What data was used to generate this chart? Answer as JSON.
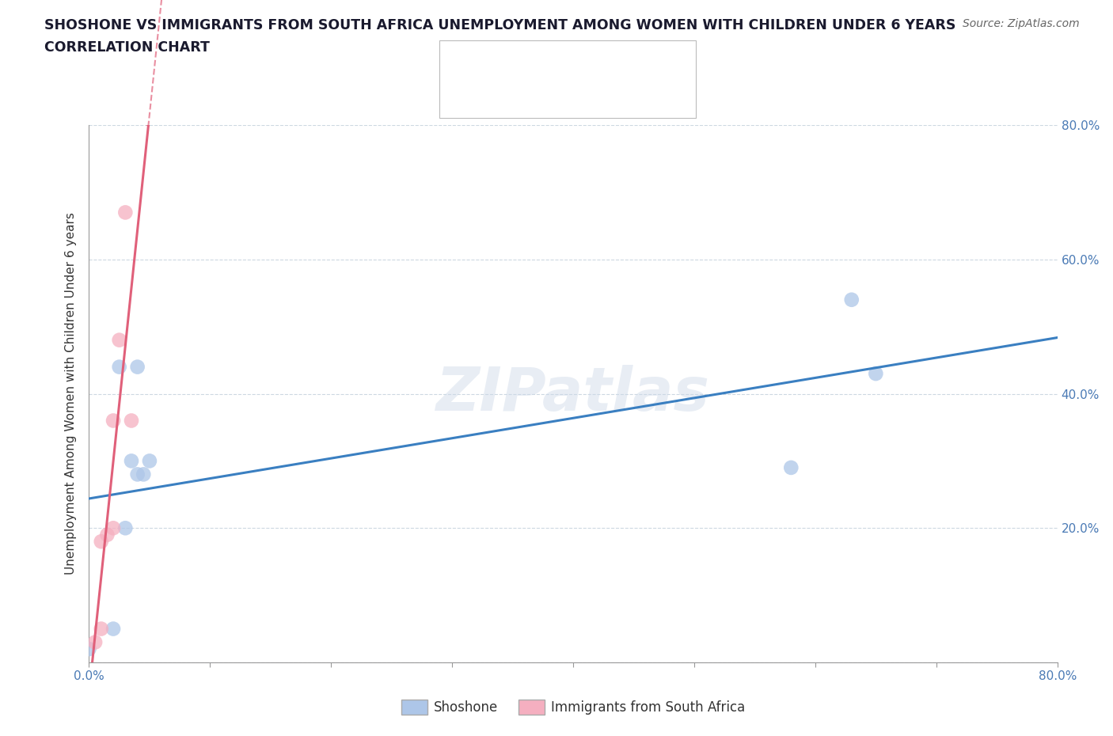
{
  "title_line1": "SHOSHONE VS IMMIGRANTS FROM SOUTH AFRICA UNEMPLOYMENT AMONG WOMEN WITH CHILDREN UNDER 6 YEARS",
  "title_line2": "CORRELATION CHART",
  "source_text": "Source: ZipAtlas.com",
  "ylabel": "Unemployment Among Women with Children Under 6 years",
  "xlim": [
    0.0,
    0.8
  ],
  "ylim": [
    0.0,
    0.8
  ],
  "shoshone_color": "#adc6e8",
  "immigrants_color": "#f5afc0",
  "trend_shoshone_color": "#3a7fc1",
  "trend_immigrants_color": "#e0607a",
  "background_color": "#ffffff",
  "grid_color": "#c8d4de",
  "legend_label1": "Shoshone",
  "legend_label2": "Immigrants from South Africa",
  "watermark": "ZIPatlas",
  "shoshone_x": [
    0.0,
    0.02,
    0.025,
    0.03,
    0.035,
    0.04,
    0.04,
    0.045,
    0.05,
    0.58,
    0.63,
    0.65
  ],
  "shoshone_y": [
    0.02,
    0.05,
    0.44,
    0.2,
    0.3,
    0.28,
    0.44,
    0.28,
    0.3,
    0.29,
    0.54,
    0.43
  ],
  "immigrants_x": [
    0.005,
    0.01,
    0.01,
    0.015,
    0.02,
    0.02,
    0.025,
    0.03,
    0.035
  ],
  "immigrants_y": [
    0.03,
    0.05,
    0.18,
    0.19,
    0.2,
    0.36,
    0.48,
    0.67,
    0.36
  ],
  "marker_size": 180,
  "trend_shoshone_x0": 0.0,
  "trend_shoshone_x1": 0.8,
  "trend_shoshone_y0": 0.225,
  "trend_shoshone_y1": 0.535
}
